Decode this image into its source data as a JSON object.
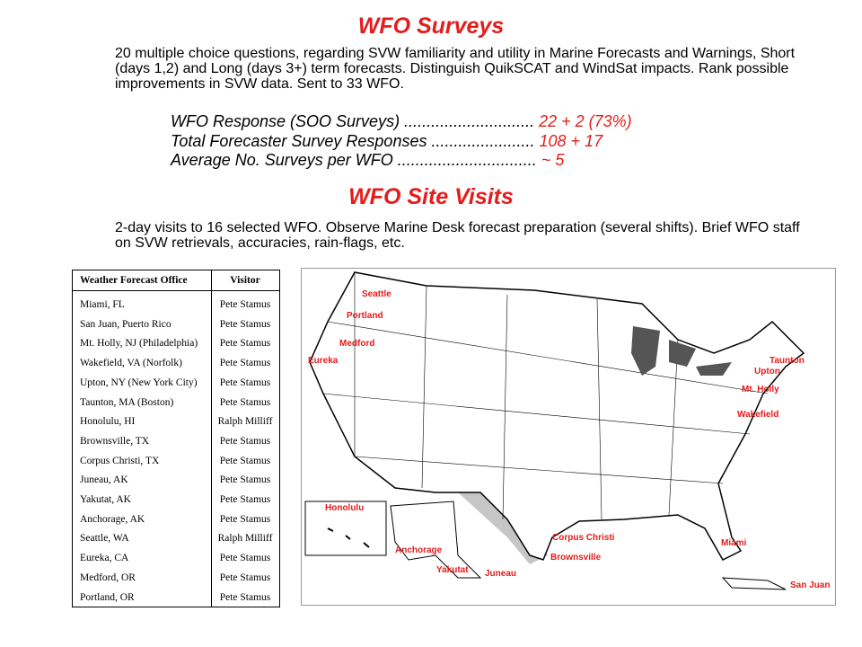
{
  "surveys": {
    "title": "WFO Surveys",
    "description": "20  multiple choice questions, regarding SVW familiarity and utility in Marine Forecasts and Warnings, Short (days 1,2) and Long (days 3+)  term forecasts.  Distinguish QuikSCAT and WindSat impacts.  Rank possible improvements in SVW data.  Sent to 33 WFO.",
    "stats": [
      {
        "label": "WFO Response (SOO Surveys) .............................",
        "value": "22 + 2 (73%)"
      },
      {
        "label": "Total Forecaster Survey Responses .......................",
        "value": "108 + 17"
      },
      {
        "label": "Average No. Surveys per WFO ...............................",
        "value": "~ 5"
      }
    ]
  },
  "visits": {
    "title": "WFO Site Visits",
    "description": "2-day visits to 16 selected WFO.  Observe Marine Desk forecast preparation (several shifts). Brief WFO staff on SVW retrievals, accuracies, rain-flags, etc."
  },
  "table": {
    "header": [
      "Weather Forecast Office",
      "Visitor"
    ],
    "rows": [
      [
        "Miami, FL",
        "Pete Stamus"
      ],
      [
        "San Juan, Puerto Rico",
        "Pete Stamus"
      ],
      [
        "Mt. Holly, NJ (Philadelphia)",
        "Pete Stamus"
      ],
      [
        "Wakefield, VA (Norfolk)",
        "Pete Stamus"
      ],
      [
        "Upton, NY (New York City)",
        "Pete Stamus"
      ],
      [
        "Taunton, MA (Boston)",
        "Pete Stamus"
      ],
      [
        "Honolulu, HI",
        "Ralph Milliff"
      ],
      [
        "Brownsville, TX",
        "Pete Stamus"
      ],
      [
        "Corpus Christi, TX",
        "Pete Stamus"
      ],
      [
        "Juneau, AK",
        "Pete Stamus"
      ],
      [
        "Yakutat, AK",
        "Pete Stamus"
      ],
      [
        "Anchorage, AK",
        "Pete Stamus"
      ],
      [
        "Seattle, WA",
        "Ralph Milliff"
      ],
      [
        "Eureka, CA",
        "Pete Stamus"
      ],
      [
        "Medford, OR",
        "Pete Stamus"
      ],
      [
        "Portland, OR",
        "Pete Stamus"
      ]
    ]
  },
  "map": {
    "labels": [
      "Seattle",
      "Portland",
      "Medford",
      "Eureka",
      "Taunton",
      "Upton",
      "Mt. Holly",
      "Wakefield",
      "Honolulu",
      "Corpus Christi",
      "Miami",
      "Anchorage",
      "Brownsville",
      "Yakutat",
      "Juneau",
      "San Juan"
    ]
  }
}
